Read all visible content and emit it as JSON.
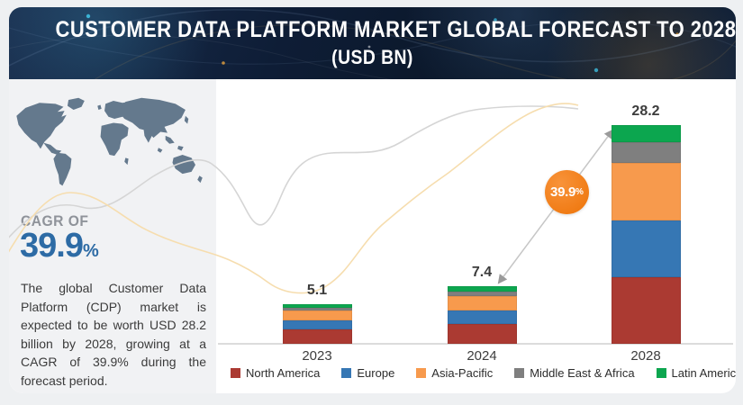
{
  "header": {
    "title_line1": "CUSTOMER DATA PLATFORM MARKET GLOBAL FORECAST TO 2028",
    "title_line2": "(USD BN)"
  },
  "sidebar": {
    "cagr_label": "CAGR OF",
    "cagr_value": "39.9",
    "cagr_unit": "%",
    "description": "The global Customer Data Platform (CDP) market is expected to be worth USD 28.2 billion by 2028, growing at a CAGR of 39.9% during the forecast period."
  },
  "growth_badge": {
    "value": "39.9",
    "unit": "%"
  },
  "colors": {
    "accent_blue": "#2d6ba5",
    "badge_orange": "#f07b14",
    "header_navy": "#0e1d36",
    "map_gray": "#64798d",
    "curve_gray": "#d5d5d5",
    "curve_yellow": "#f6ddae"
  },
  "chart_data": {
    "type": "bar",
    "stacked": true,
    "title": "Customer Data Platform Market Global Forecast to 2028 (USD BN)",
    "categories": [
      "2023",
      "2024",
      "2028"
    ],
    "totals": [
      "5.1",
      "7.4",
      "28.2"
    ],
    "series": [
      {
        "name": "North America",
        "color": "#ab3a32",
        "values": [
          1.8,
          2.55,
          8.6
        ]
      },
      {
        "name": "Europe",
        "color": "#3677b4",
        "values": [
          1.25,
          1.7,
          7.3
        ]
      },
      {
        "name": "Asia-Pacific",
        "color": "#f79a4d",
        "values": [
          1.2,
          1.85,
          7.4
        ]
      },
      {
        "name": "Middle East & Africa",
        "color": "#7f7f7f",
        "values": [
          0.45,
          0.65,
          2.7
        ]
      },
      {
        "name": "Latin America",
        "color": "#0ca64f",
        "values": [
          0.4,
          0.65,
          2.2
        ]
      }
    ],
    "ylabel": "",
    "xlabel": "",
    "ylim": [
      0,
      30
    ],
    "grid": false,
    "legend_position": "bottom",
    "growth_annotation": "39.9%"
  }
}
